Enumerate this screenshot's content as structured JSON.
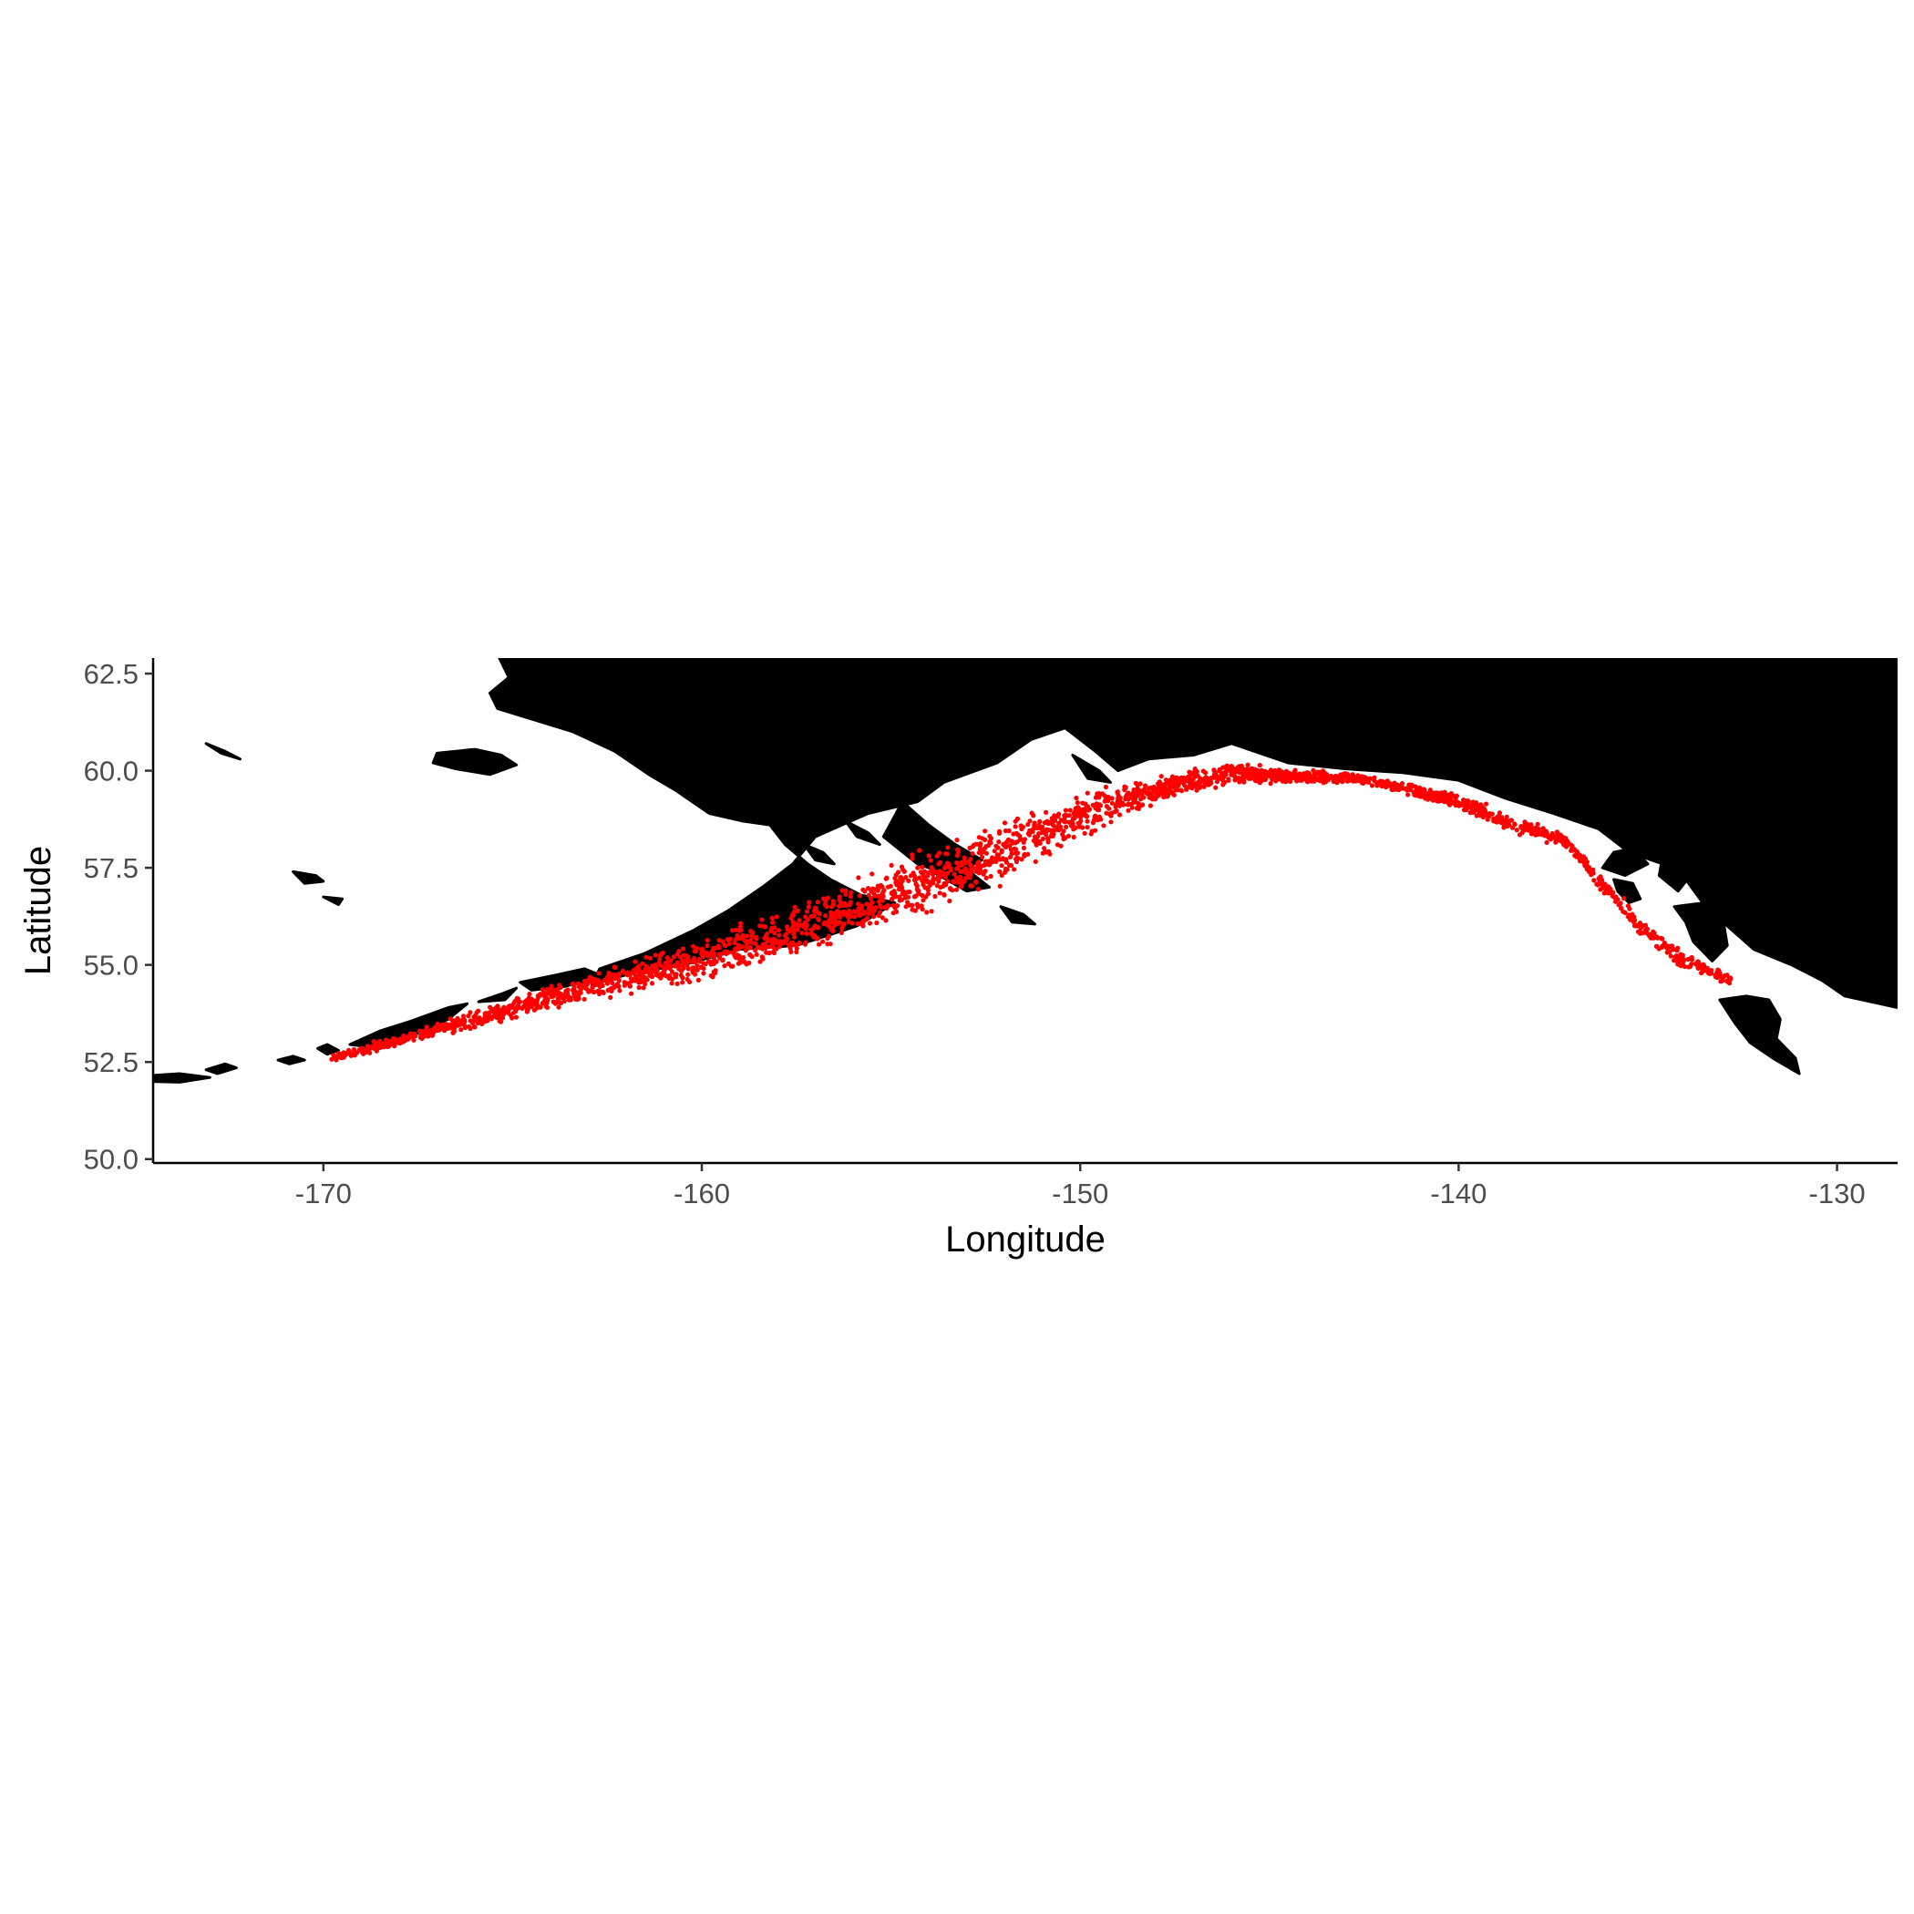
{
  "chart_data": {
    "type": "scatter",
    "title": "",
    "xlabel": "Longitude",
    "ylabel": "Latitude",
    "xlim": [
      -174.5,
      -128.4
    ],
    "ylim": [
      49.9,
      62.9
    ],
    "x_ticks": [
      -170,
      -160,
      -150,
      -140,
      -130
    ],
    "x_tick_labels": [
      "-170",
      "-160",
      "-150",
      "-140",
      "-130"
    ],
    "y_ticks": [
      50.0,
      52.5,
      55.0,
      57.5,
      60.0,
      62.5
    ],
    "y_tick_labels": [
      "50.0",
      "52.5",
      "55.0",
      "57.5",
      "60.0",
      "62.5"
    ],
    "grid": false,
    "legend": "none",
    "land_color": "#000000",
    "point_color": "#ff0000",
    "band": {
      "west_points": 2200,
      "east_points": 650,
      "west_centerline": [
        [
          -169.8,
          52.6
        ],
        [
          -168.0,
          53.05
        ],
        [
          -166.0,
          53.6
        ],
        [
          -164.0,
          54.15
        ],
        [
          -162.0,
          54.65
        ],
        [
          -160.0,
          55.1
        ],
        [
          -158.0,
          55.7
        ],
        [
          -156.0,
          56.4
        ],
        [
          -154.0,
          57.2
        ],
        [
          -152.0,
          57.9
        ],
        [
          -150.5,
          58.6
        ],
        [
          -149.0,
          59.2
        ],
        [
          -147.5,
          59.65
        ],
        [
          -146.0,
          59.95
        ],
        [
          -144.5,
          59.85
        ],
        [
          -143.0,
          59.8
        ]
      ],
      "west_halfwidth": [
        [
          -169.8,
          0.15
        ],
        [
          -166.0,
          0.3
        ],
        [
          -162.0,
          0.55
        ],
        [
          -158.0,
          0.9
        ],
        [
          -154.0,
          1.05
        ],
        [
          -151.0,
          1.0
        ],
        [
          -148.0,
          0.45
        ],
        [
          -143.0,
          0.2
        ]
      ],
      "east_centerline": [
        [
          -143.0,
          59.85
        ],
        [
          -141.5,
          59.55
        ],
        [
          -140.0,
          59.2
        ],
        [
          -138.5,
          58.6
        ],
        [
          -137.2,
          58.2
        ],
        [
          -136.3,
          57.2
        ],
        [
          -135.3,
          56.1
        ],
        [
          -134.2,
          55.2
        ],
        [
          -132.8,
          54.6
        ]
      ],
      "east_halfwidth": [
        [
          -143.0,
          0.18
        ],
        [
          -139.0,
          0.32
        ],
        [
          -137.0,
          0.2
        ],
        [
          -135.0,
          0.35
        ],
        [
          -132.8,
          0.2
        ]
      ]
    },
    "land_polygons": [
      [
        [
          -165.5,
          63.2
        ],
        [
          -165.1,
          62.4
        ],
        [
          -165.6,
          62.0
        ],
        [
          -165.4,
          61.6
        ],
        [
          -163.4,
          61.0
        ],
        [
          -162.3,
          60.5
        ],
        [
          -161.4,
          59.9
        ],
        [
          -160.7,
          59.5
        ],
        [
          -159.8,
          58.9
        ],
        [
          -158.9,
          58.7
        ],
        [
          -158.2,
          58.6
        ],
        [
          -157.8,
          58.1
        ],
        [
          -157.2,
          57.6
        ],
        [
          -156.6,
          57.2
        ],
        [
          -155.8,
          56.8
        ],
        [
          -154.9,
          56.6
        ],
        [
          -155.9,
          56.0
        ],
        [
          -157.5,
          55.5
        ],
        [
          -159.0,
          55.4
        ],
        [
          -160.5,
          55.0
        ],
        [
          -161.8,
          54.8
        ],
        [
          -162.9,
          54.5
        ],
        [
          -162.7,
          54.9
        ],
        [
          -161.5,
          55.3
        ],
        [
          -160.2,
          55.9
        ],
        [
          -159.3,
          56.4
        ],
        [
          -158.4,
          57.0
        ],
        [
          -157.6,
          57.6
        ],
        [
          -157.0,
          58.3
        ],
        [
          -155.6,
          58.9
        ],
        [
          -154.3,
          59.2
        ],
        [
          -153.6,
          59.7
        ],
        [
          -152.2,
          60.2
        ],
        [
          -151.3,
          60.8
        ],
        [
          -150.4,
          61.1
        ],
        [
          -149.6,
          60.5
        ],
        [
          -149.0,
          60.0
        ],
        [
          -148.2,
          60.3
        ],
        [
          -147.0,
          60.4
        ],
        [
          -146.0,
          60.7
        ],
        [
          -144.5,
          60.2
        ],
        [
          -143.0,
          60.05
        ],
        [
          -141.5,
          59.95
        ],
        [
          -140.0,
          59.75
        ],
        [
          -138.8,
          59.3
        ],
        [
          -137.5,
          58.9
        ],
        [
          -136.3,
          58.5
        ],
        [
          -135.5,
          57.9
        ],
        [
          -134.6,
          57.6
        ],
        [
          -134.0,
          57.2
        ],
        [
          -133.4,
          56.4
        ],
        [
          -132.9,
          56.0
        ],
        [
          -132.2,
          55.4
        ],
        [
          -131.2,
          55.0
        ],
        [
          -130.4,
          54.6
        ],
        [
          -129.8,
          54.2
        ],
        [
          -128.4,
          53.9
        ],
        [
          -128.4,
          63.2
        ]
      ],
      [
        [
          -154.7,
          59.2
        ],
        [
          -154.0,
          58.6
        ],
        [
          -153.3,
          58.1
        ],
        [
          -152.6,
          57.7
        ],
        [
          -153.4,
          57.3
        ],
        [
          -154.3,
          57.6
        ],
        [
          -155.2,
          58.3
        ]
      ],
      [
        [
          -159.5,
          55.55
        ],
        [
          -158.8,
          55.75
        ],
        [
          -158.2,
          55.9
        ],
        [
          -157.6,
          56.0
        ],
        [
          -157.3,
          55.8
        ],
        [
          -158.0,
          55.55
        ],
        [
          -158.9,
          55.4
        ]
      ],
      [
        [
          -153.8,
          57.95
        ],
        [
          -153.1,
          57.7
        ],
        [
          -152.8,
          57.3
        ],
        [
          -152.4,
          57.0
        ],
        [
          -153.0,
          56.9
        ],
        [
          -153.9,
          57.4
        ]
      ],
      [
        [
          -150.2,
          60.4
        ],
        [
          -149.5,
          60.0
        ],
        [
          -149.2,
          59.7
        ],
        [
          -149.8,
          59.8
        ]
      ],
      [
        [
          -152.1,
          56.5
        ],
        [
          -151.5,
          56.3
        ],
        [
          -151.2,
          56.05
        ],
        [
          -151.8,
          56.1
        ]
      ],
      [
        [
          -157.3,
          58.1
        ],
        [
          -156.8,
          57.9
        ],
        [
          -156.5,
          57.6
        ],
        [
          -157.0,
          57.7
        ]
      ],
      [
        [
          -156.2,
          58.7
        ],
        [
          -155.6,
          58.4
        ],
        [
          -155.3,
          58.1
        ],
        [
          -155.9,
          58.3
        ]
      ],
      [
        [
          -169.3,
          52.95
        ],
        [
          -168.5,
          53.3
        ],
        [
          -167.7,
          53.55
        ],
        [
          -166.7,
          53.9
        ],
        [
          -166.2,
          54.0
        ],
        [
          -166.7,
          53.6
        ],
        [
          -167.6,
          53.2
        ],
        [
          -168.5,
          52.85
        ]
      ],
      [
        [
          -165.9,
          54.05
        ],
        [
          -165.3,
          54.25
        ],
        [
          -164.9,
          54.4
        ],
        [
          -165.2,
          54.1
        ]
      ],
      [
        [
          -164.8,
          54.55
        ],
        [
          -163.8,
          54.75
        ],
        [
          -163.1,
          54.9
        ],
        [
          -162.6,
          54.7
        ],
        [
          -163.6,
          54.45
        ],
        [
          -164.5,
          54.35
        ]
      ],
      [
        [
          -170.15,
          52.85
        ],
        [
          -169.9,
          52.95
        ],
        [
          -169.6,
          52.8
        ],
        [
          -169.9,
          52.7
        ]
      ],
      [
        [
          -171.2,
          52.55
        ],
        [
          -170.8,
          52.65
        ],
        [
          -170.5,
          52.55
        ],
        [
          -170.9,
          52.45
        ]
      ],
      [
        [
          -173.1,
          52.3
        ],
        [
          -172.6,
          52.45
        ],
        [
          -172.3,
          52.35
        ],
        [
          -172.8,
          52.2
        ]
      ],
      [
        [
          -174.6,
          52.15
        ],
        [
          -173.8,
          52.2
        ],
        [
          -173.0,
          52.1
        ],
        [
          -173.8,
          51.98
        ],
        [
          -174.6,
          52.0
        ]
      ],
      [
        [
          -173.1,
          60.7
        ],
        [
          -172.6,
          60.5
        ],
        [
          -172.2,
          60.3
        ],
        [
          -172.7,
          60.45
        ]
      ],
      [
        [
          -167.0,
          60.45
        ],
        [
          -166.0,
          60.55
        ],
        [
          -165.3,
          60.4
        ],
        [
          -164.9,
          60.15
        ],
        [
          -165.6,
          59.9
        ],
        [
          -166.5,
          60.05
        ],
        [
          -167.1,
          60.2
        ]
      ],
      [
        [
          -170.8,
          57.4
        ],
        [
          -170.2,
          57.3
        ],
        [
          -170.0,
          57.15
        ],
        [
          -170.5,
          57.1
        ]
      ],
      [
        [
          -170.0,
          56.75
        ],
        [
          -169.5,
          56.7
        ],
        [
          -169.6,
          56.55
        ]
      ],
      [
        [
          -134.6,
          57.85
        ],
        [
          -134.1,
          57.9
        ],
        [
          -133.8,
          57.4
        ],
        [
          -134.2,
          56.9
        ],
        [
          -134.7,
          57.3
        ]
      ],
      [
        [
          -135.9,
          57.9
        ],
        [
          -135.4,
          58.0
        ],
        [
          -135.0,
          57.6
        ],
        [
          -135.6,
          57.3
        ],
        [
          -136.2,
          57.5
        ]
      ],
      [
        [
          -135.9,
          57.2
        ],
        [
          -135.4,
          57.1
        ],
        [
          -135.2,
          56.7
        ],
        [
          -135.5,
          56.6
        ],
        [
          -135.8,
          56.9
        ]
      ],
      [
        [
          -134.3,
          56.5
        ],
        [
          -133.5,
          56.6
        ],
        [
          -133.0,
          56.1
        ],
        [
          -132.9,
          55.5
        ],
        [
          -133.3,
          55.1
        ],
        [
          -133.8,
          55.6
        ],
        [
          -134.0,
          56.1
        ]
      ],
      [
        [
          -132.6,
          56.9
        ],
        [
          -132.0,
          56.9
        ],
        [
          -131.7,
          56.3
        ],
        [
          -132.2,
          56.0
        ],
        [
          -132.8,
          56.4
        ]
      ],
      [
        [
          -133.1,
          54.1
        ],
        [
          -132.4,
          54.2
        ],
        [
          -131.8,
          54.1
        ],
        [
          -131.5,
          53.6
        ],
        [
          -131.6,
          53.1
        ],
        [
          -131.1,
          52.6
        ],
        [
          -131.0,
          52.2
        ],
        [
          -131.7,
          52.6
        ],
        [
          -132.3,
          53.0
        ],
        [
          -132.7,
          53.5
        ]
      ]
    ]
  }
}
